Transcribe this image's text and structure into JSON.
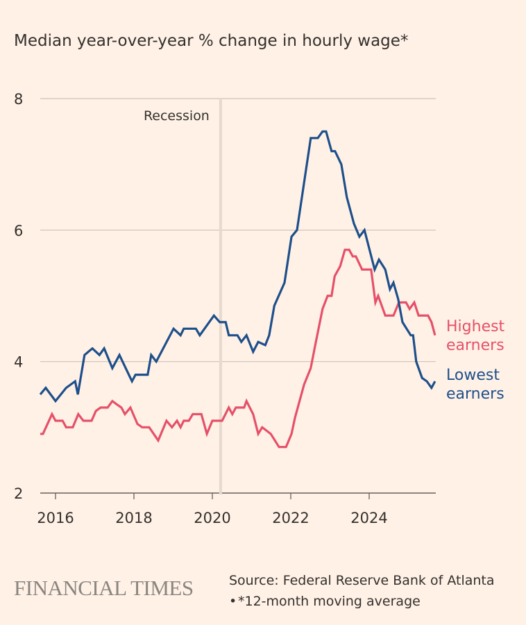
{
  "chart_data": {
    "type": "line",
    "title": "Median year-over-year % change in hourly wage*",
    "xlabel": "",
    "ylabel": "",
    "xlim": [
      2015.6,
      2025.7
    ],
    "ylim": [
      2,
      8
    ],
    "yticks": [
      "8",
      "6",
      "4",
      "2"
    ],
    "ytick_values": [
      8,
      6,
      4,
      2
    ],
    "xticks": [
      "2016",
      "2018",
      "2020",
      "2022",
      "2024"
    ],
    "xtick_values": [
      2016,
      2018,
      2020,
      2022,
      2024
    ],
    "grid": true,
    "annotation": {
      "label": "Recession",
      "x": 2020.21
    },
    "series": [
      {
        "name": "Highest earners",
        "label_lines": [
          "Highest",
          "earners"
        ],
        "color": "#e5506a",
        "x": [
          2015.61,
          2015.68,
          2015.91,
          2016.0,
          2016.18,
          2016.27,
          2016.44,
          2016.58,
          2016.71,
          2016.92,
          2017.03,
          2017.15,
          2017.33,
          2017.45,
          2017.56,
          2017.68,
          2017.77,
          2017.91,
          2018.09,
          2018.21,
          2018.39,
          2018.62,
          2018.83,
          2018.97,
          2019.1,
          2019.19,
          2019.27,
          2019.4,
          2019.5,
          2019.72,
          2019.86,
          2020.0,
          2020.25,
          2020.42,
          2020.51,
          2020.6,
          2020.81,
          2020.87,
          2021.04,
          2021.17,
          2021.27,
          2021.49,
          2021.7,
          2021.88,
          2022.02,
          2022.11,
          2022.34,
          2022.51,
          2022.64,
          2022.81,
          2022.94,
          2023.04,
          2023.12,
          2023.26,
          2023.38,
          2023.49,
          2023.58,
          2023.66,
          2023.82,
          2024.05,
          2024.16,
          2024.23,
          2024.41,
          2024.62,
          2024.76,
          2024.94,
          2025.03,
          2025.15,
          2025.26,
          2025.5,
          2025.59,
          2025.68
        ],
        "values": [
          2.9,
          2.9,
          3.2,
          3.1,
          3.1,
          3.0,
          3.0,
          3.2,
          3.1,
          3.1,
          3.25,
          3.3,
          3.3,
          3.4,
          3.35,
          3.3,
          3.2,
          3.3,
          3.05,
          3.0,
          3.0,
          2.8,
          3.1,
          3.0,
          3.1,
          3.0,
          3.1,
          3.1,
          3.2,
          3.2,
          2.9,
          3.1,
          3.1,
          3.3,
          3.2,
          3.3,
          3.3,
          3.4,
          3.2,
          2.9,
          3.0,
          2.9,
          2.7,
          2.7,
          2.9,
          3.15,
          3.65,
          3.9,
          4.3,
          4.8,
          5.0,
          5.0,
          5.3,
          5.45,
          5.7,
          5.7,
          5.6,
          5.6,
          5.4,
          5.4,
          4.9,
          5.0,
          4.7,
          4.7,
          4.9,
          4.9,
          4.8,
          4.9,
          4.7,
          4.7,
          4.6,
          4.4
        ]
      },
      {
        "name": "Lowest earners",
        "label_lines": [
          "Lowest",
          "earners"
        ],
        "color": "#1d4f8b",
        "x": [
          2015.61,
          2015.75,
          2016.0,
          2016.27,
          2016.5,
          2016.57,
          2016.74,
          2016.94,
          2017.12,
          2017.24,
          2017.45,
          2017.63,
          2017.95,
          2018.04,
          2018.35,
          2018.44,
          2018.57,
          2019.01,
          2019.19,
          2019.27,
          2019.58,
          2019.68,
          2020.04,
          2020.19,
          2020.34,
          2020.42,
          2020.64,
          2020.74,
          2020.87,
          2021.04,
          2021.17,
          2021.35,
          2021.45,
          2021.58,
          2021.84,
          2022.02,
          2022.16,
          2022.51,
          2022.69,
          2022.81,
          2022.9,
          2023.04,
          2023.13,
          2023.29,
          2023.43,
          2023.61,
          2023.75,
          2023.88,
          2024.14,
          2024.25,
          2024.41,
          2024.53,
          2024.62,
          2024.74,
          2024.85,
          2025.06,
          2025.12,
          2025.2,
          2025.35,
          2025.47,
          2025.59,
          2025.68
        ],
        "values": [
          3.5,
          3.6,
          3.4,
          3.6,
          3.7,
          3.5,
          4.1,
          4.2,
          4.1,
          4.2,
          3.9,
          4.1,
          3.7,
          3.8,
          3.8,
          4.1,
          4.0,
          4.5,
          4.4,
          4.5,
          4.5,
          4.4,
          4.7,
          4.6,
          4.6,
          4.4,
          4.4,
          4.3,
          4.4,
          4.15,
          4.3,
          4.25,
          4.4,
          4.85,
          5.2,
          5.9,
          6.0,
          7.4,
          7.4,
          7.5,
          7.5,
          7.2,
          7.2,
          7.0,
          6.5,
          6.1,
          5.9,
          6.0,
          5.4,
          5.55,
          5.4,
          5.1,
          5.2,
          4.95,
          4.6,
          4.4,
          4.4,
          4.0,
          3.75,
          3.7,
          3.6,
          3.7
        ]
      }
    ]
  },
  "footer": {
    "logo": "FINANCIAL TIMES",
    "source": "Source: Federal Reserve Bank of Atlanta",
    "note_bullet": "•",
    "note": "*12-month moving average"
  },
  "colors": {
    "background": "#fff1e5",
    "text": "#33302e",
    "grid": "#ccc1b7",
    "recession": "#e6d9ce",
    "logo": "#8b8580"
  }
}
